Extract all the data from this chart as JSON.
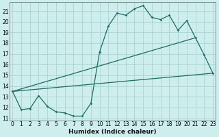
{
  "xlabel": "Humidex (Indice chaleur)",
  "bg_color": "#ceeeed",
  "grid_color": "#aed8d5",
  "line_color": "#1a6b5e",
  "x_values": [
    0,
    1,
    2,
    3,
    4,
    5,
    6,
    7,
    8,
    9,
    10,
    11,
    12,
    13,
    14,
    15,
    16,
    17,
    18,
    19,
    20,
    21,
    22,
    23
  ],
  "main_y": [
    13.5,
    11.8,
    11.9,
    13.1,
    12.1,
    11.6,
    11.5,
    11.2,
    11.2,
    12.4,
    17.2,
    19.6,
    20.8,
    20.6,
    21.2,
    21.5,
    20.4,
    20.2,
    20.6,
    19.2,
    20.1,
    18.5,
    16.9,
    15.2
  ],
  "trend_lines": [
    {
      "x": [
        0,
        21
      ],
      "y": [
        13.5,
        18.5
      ]
    },
    {
      "x": [
        0,
        23
      ],
      "y": [
        13.5,
        15.2
      ]
    }
  ],
  "ylim": [
    10.8,
    21.8
  ],
  "xlim": [
    -0.3,
    23.3
  ],
  "yticks": [
    11,
    12,
    13,
    14,
    15,
    16,
    17,
    18,
    19,
    20,
    21
  ],
  "xticks": [
    0,
    1,
    2,
    3,
    4,
    5,
    6,
    7,
    8,
    9,
    10,
    11,
    12,
    13,
    14,
    15,
    16,
    17,
    18,
    19,
    20,
    21,
    22,
    23
  ],
  "xlabel_size": 6.5,
  "tick_size": 5.5
}
